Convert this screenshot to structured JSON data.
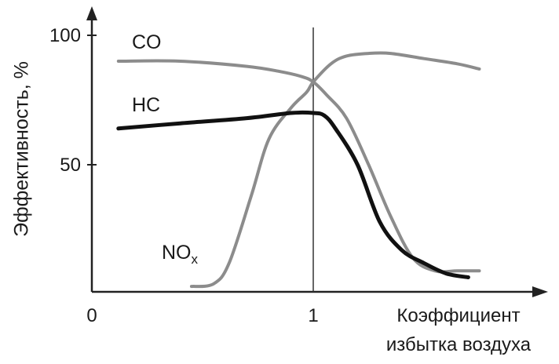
{
  "chart_data": {
    "type": "line",
    "ylabel": "Эффективность, %",
    "xlabel_line1": "Коэффициент",
    "xlabel_line2": "избытка воздуха",
    "xlim": [
      0,
      1.8
    ],
    "ylim": [
      0,
      105
    ],
    "x_ticks": [
      {
        "value": 0,
        "label": "0"
      },
      {
        "value": 1,
        "label": "1"
      }
    ],
    "y_ticks": [
      {
        "value": 50,
        "label": "50"
      },
      {
        "value": 100,
        "label": "100"
      }
    ],
    "reference_line_x": 1,
    "series": [
      {
        "name": "CO",
        "color": "#8c8c8c",
        "x": [
          0.12,
          0.4,
          0.7,
          0.85,
          0.95,
          1.0,
          1.06,
          1.15,
          1.25,
          1.35,
          1.45,
          1.55,
          1.65,
          1.75
        ],
        "y": [
          90,
          90,
          88,
          86,
          84,
          82,
          77,
          68,
          50,
          30,
          14,
          9,
          9,
          9
        ]
      },
      {
        "name": "HC",
        "color": "#111111",
        "x": [
          0.12,
          0.4,
          0.7,
          0.9,
          1.0,
          1.05,
          1.1,
          1.2,
          1.3,
          1.4,
          1.5,
          1.6,
          1.7
        ],
        "y": [
          64,
          66,
          68,
          70,
          70,
          69,
          64,
          50,
          28,
          17,
          12,
          8,
          6.5
        ]
      },
      {
        "name": "NOx",
        "color": "#8c8c8c",
        "x": [
          0.45,
          0.55,
          0.62,
          0.72,
          0.8,
          0.9,
          0.97,
          1.0,
          1.08,
          1.15,
          1.25,
          1.35,
          1.5,
          1.65,
          1.75
        ],
        "y": [
          3,
          4,
          12,
          38,
          60,
          72,
          78,
          82,
          89,
          92,
          93,
          93,
          91,
          89,
          87
        ]
      }
    ],
    "annotations": [
      {
        "text": "CO",
        "series": "CO"
      },
      {
        "text": "HC",
        "series": "HC"
      },
      {
        "text": "NO",
        "sub": "x",
        "series": "NOx"
      }
    ]
  }
}
